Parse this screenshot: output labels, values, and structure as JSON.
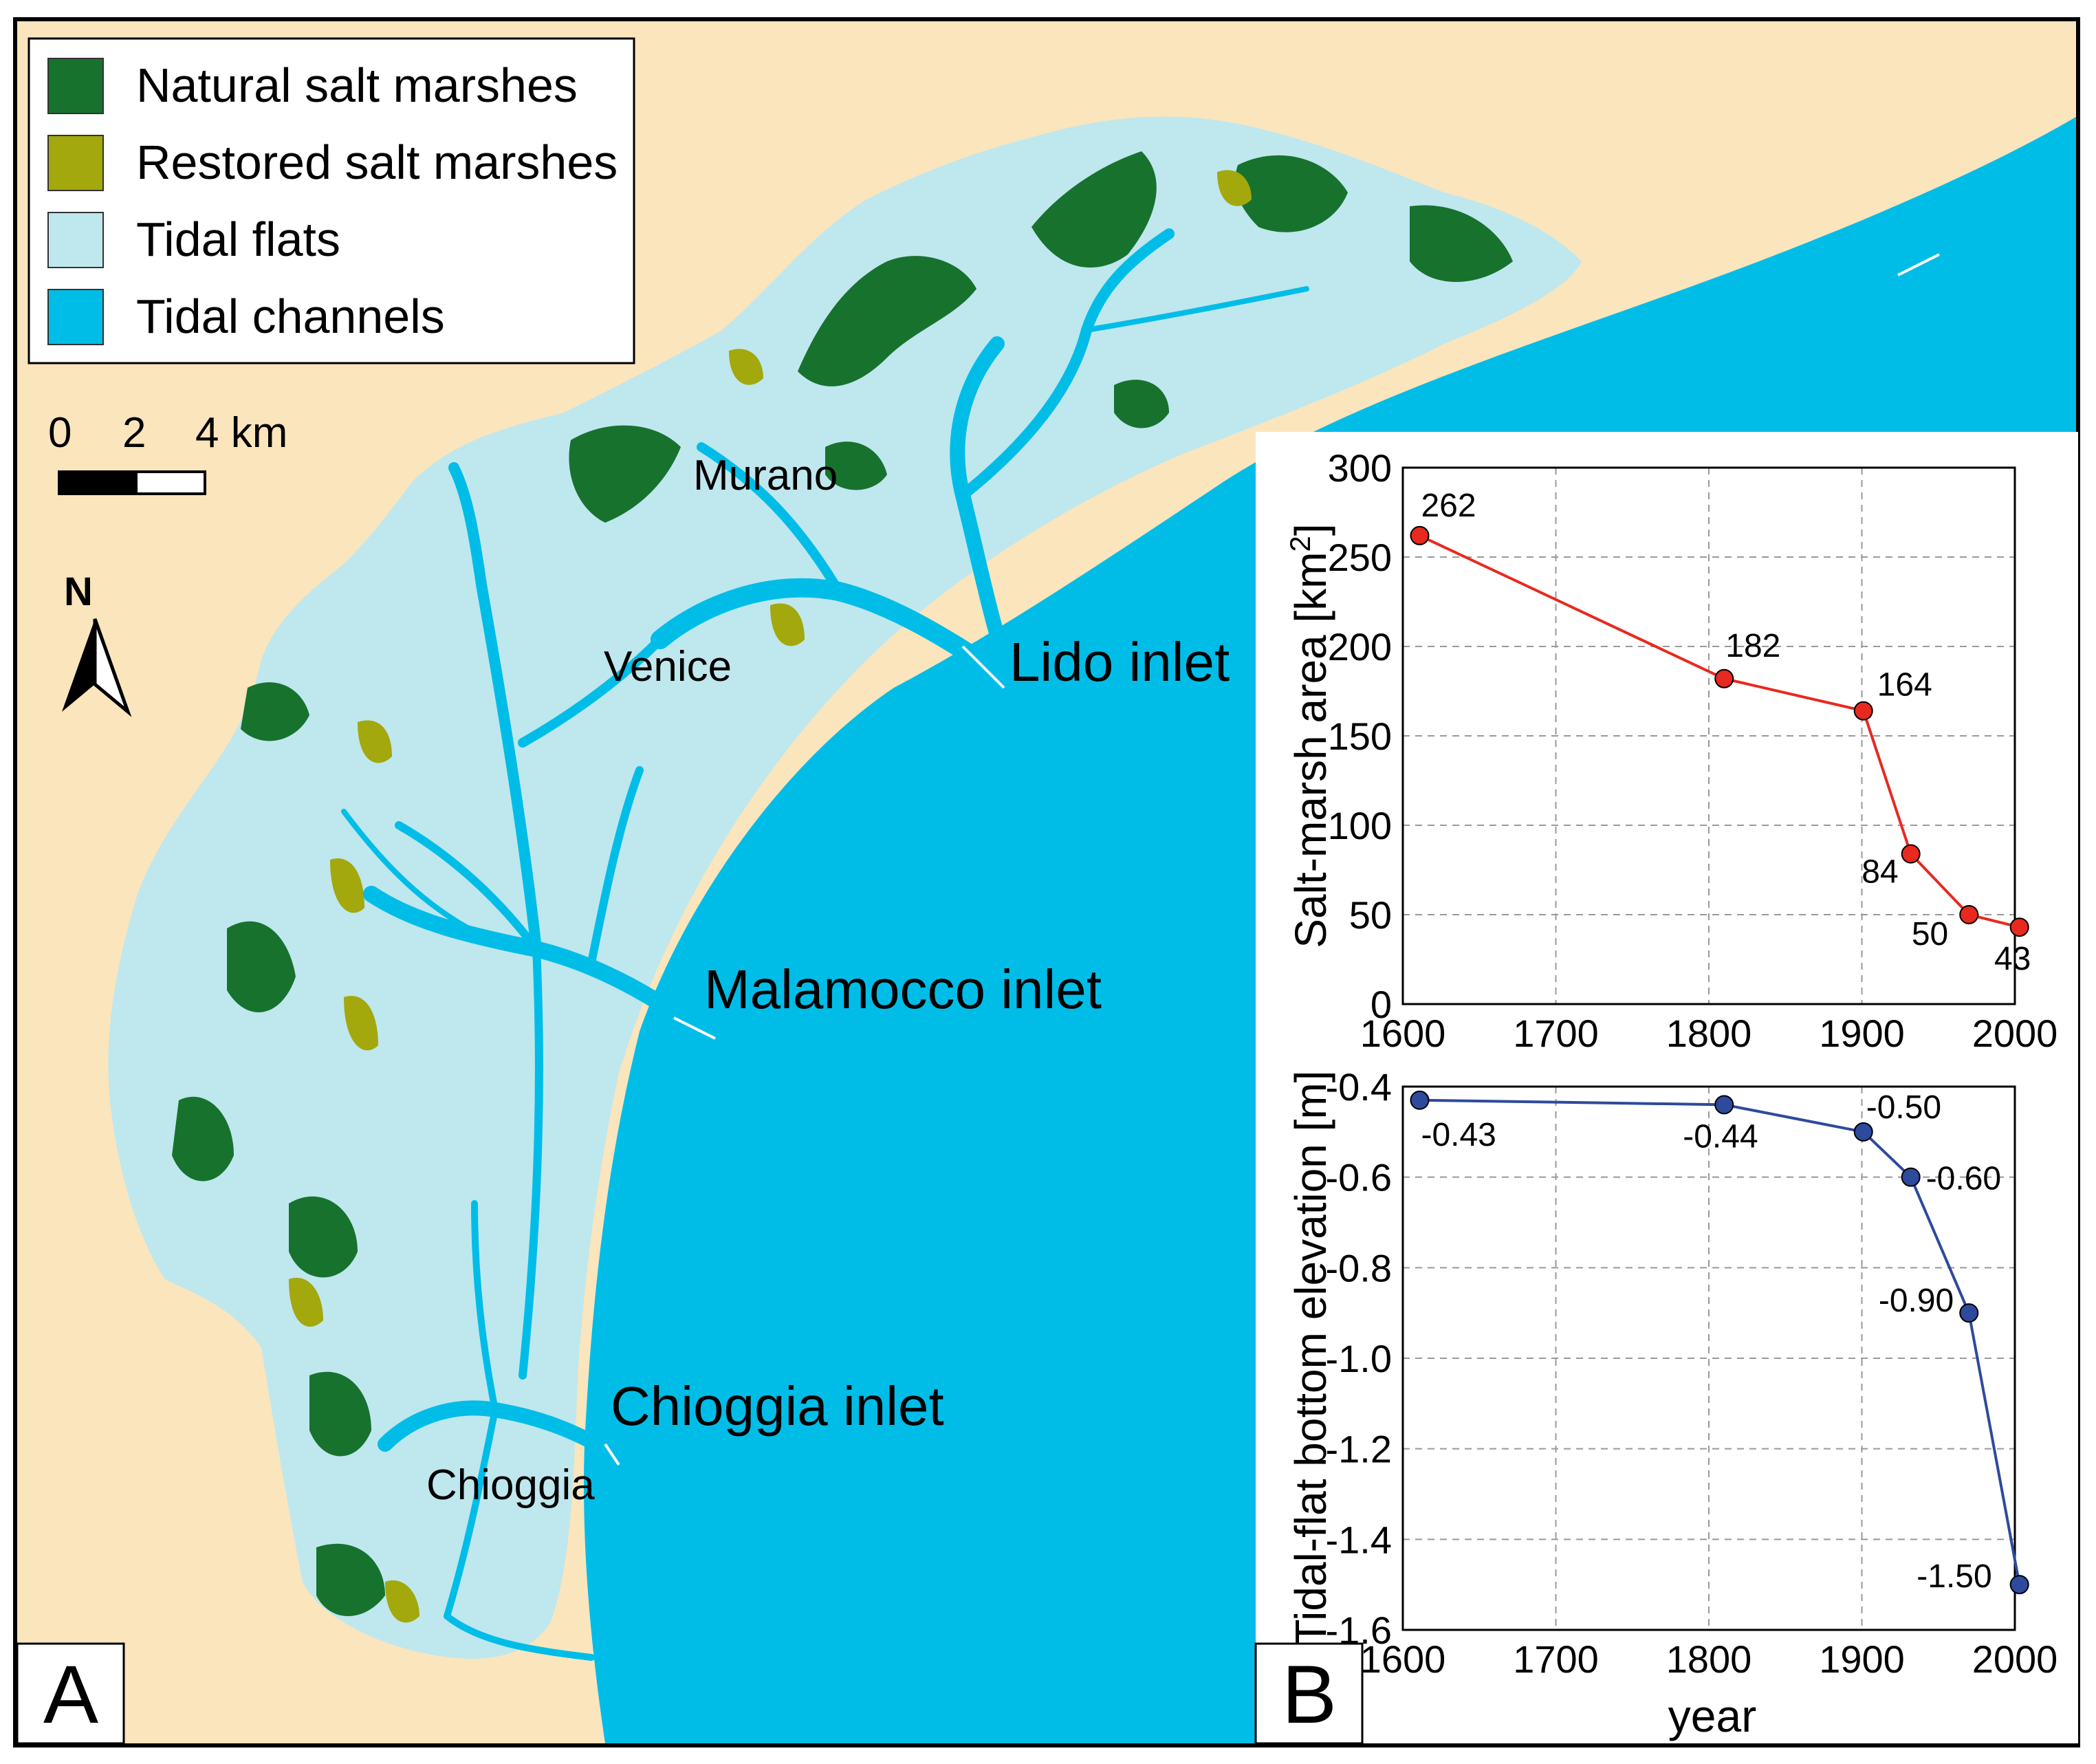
{
  "colors": {
    "land": "#fae5bd",
    "tidal_flats": "#bfe7ee",
    "tidal_channels": "#00bde8",
    "natural_marsh": "#17722e",
    "restored_marsh": "#a3a80c",
    "area_series": "#e8291f",
    "elevation_series": "#2d4a9c"
  },
  "legend": {
    "items": [
      {
        "label": "Natural salt marshes",
        "color": "#17722e"
      },
      {
        "label": "Restored salt marshes",
        "color": "#a3a80c"
      },
      {
        "label": "Tidal flats",
        "color": "#bfe7ee"
      },
      {
        "label": "Tidal channels",
        "color": "#00bde8"
      }
    ]
  },
  "scale_bar": {
    "labels": [
      "0",
      "2",
      "4 km"
    ]
  },
  "north_arrow": {
    "label": "N"
  },
  "map_labels": {
    "murano": "Murano",
    "venice": "Venice",
    "lido_inlet": "Lido inlet",
    "malamocco_inlet": "Malamocco inlet",
    "chioggia_inlet": "Chioggia inlet",
    "chioggia": "Chioggia"
  },
  "panel_labels": {
    "a": "A",
    "b": "B"
  },
  "chart_data": [
    {
      "type": "line",
      "x": [
        1611,
        1810,
        1901,
        1932,
        1970,
        2003
      ],
      "y": [
        262,
        182,
        164,
        84,
        50,
        43
      ],
      "data_labels": [
        "262",
        "182",
        "164",
        "84",
        "50",
        "43"
      ],
      "ylabel": "Salt-marsh area  [km",
      "ylabel_sup": "2",
      "ylabel_end": "]",
      "xlabel": "",
      "xlim": [
        1600,
        2000
      ],
      "ylim": [
        0,
        300
      ],
      "xticks": [
        "1600",
        "1700",
        "1800",
        "1900",
        "2000"
      ],
      "yticks": [
        "0",
        "50",
        "100",
        "150",
        "200",
        "250",
        "300"
      ],
      "grid": true
    },
    {
      "type": "line",
      "x": [
        1611,
        1810,
        1901,
        1932,
        1970,
        2003
      ],
      "y": [
        -0.43,
        -0.44,
        -0.5,
        -0.6,
        -0.9,
        -1.5
      ],
      "data_labels": [
        "-0.43",
        "-0.44",
        "-0.50",
        "-0.60",
        "-0.90",
        "-1.50"
      ],
      "ylabel": "Tidal-flat bottom elevation [m]",
      "xlabel": "year",
      "xlim": [
        1600,
        2000
      ],
      "ylim": [
        -1.6,
        -0.4
      ],
      "xticks": [
        "1600",
        "1700",
        "1800",
        "1900",
        "2000"
      ],
      "yticks": [
        "-1.6",
        "-1.4",
        "-1.2",
        "-1.0",
        "-0.8",
        "-0.6",
        "-0.4"
      ],
      "grid": true
    }
  ]
}
